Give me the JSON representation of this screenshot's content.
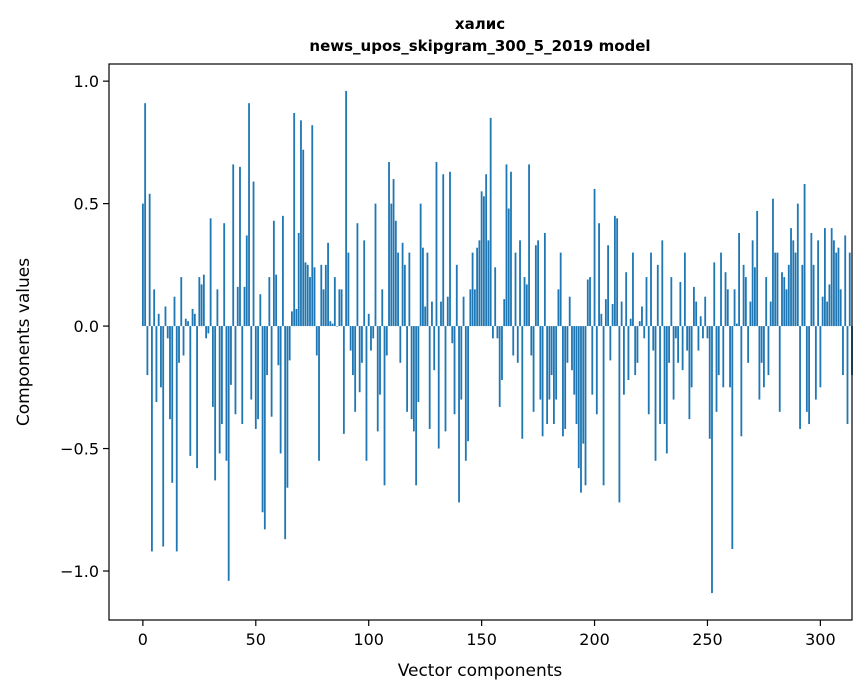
{
  "chart_data": {
    "type": "bar",
    "title": "халис",
    "subtitle": "news_upos_skipgram_300_5_2019 model",
    "xlabel": "Vector components",
    "ylabel": "Components values",
    "xlim": [
      -15,
      314
    ],
    "ylim": [
      -1.2,
      1.07
    ],
    "xticks": [
      0,
      50,
      100,
      150,
      200,
      250,
      300
    ],
    "xtick_labels": [
      "0",
      "50",
      "100",
      "150",
      "200",
      "250",
      "300"
    ],
    "yticks": [
      -1.0,
      -0.5,
      0.0,
      0.5,
      1.0
    ],
    "ytick_labels": [
      "−1.0",
      "−0.5",
      "0.0",
      "0.5",
      "1.0"
    ],
    "grid": false,
    "bar_color": "#1f77b4",
    "values": [
      0.5,
      0.91,
      -0.2,
      0.54,
      -0.92,
      0.15,
      -0.31,
      0.05,
      -0.25,
      -0.9,
      0.08,
      -0.05,
      -0.38,
      -0.64,
      0.12,
      -0.92,
      -0.15,
      0.2,
      -0.12,
      0.03,
      0.02,
      -0.53,
      0.07,
      0.05,
      -0.58,
      0.2,
      0.17,
      0.21,
      -0.05,
      -0.03,
      0.44,
      -0.33,
      -0.63,
      0.15,
      -0.52,
      -0.4,
      0.42,
      -0.55,
      -1.04,
      -0.24,
      0.66,
      -0.36,
      0.16,
      0.65,
      -0.4,
      0.16,
      0.37,
      0.91,
      -0.3,
      0.59,
      -0.42,
      -0.38,
      0.13,
      -0.76,
      -0.83,
      -0.2,
      0.2,
      -0.37,
      0.43,
      0.21,
      -0.16,
      -0.52,
      0.45,
      -0.87,
      -0.66,
      -0.14,
      0.06,
      0.87,
      0.07,
      0.38,
      0.84,
      0.72,
      0.26,
      0.25,
      0.2,
      0.82,
      0.24,
      -0.12,
      -0.55,
      0.25,
      0.15,
      0.25,
      0.34,
      0.02,
      0.01,
      0.2,
      0.0,
      0.15,
      0.15,
      -0.44,
      0.96,
      0.3,
      -0.1,
      -0.2,
      -0.35,
      0.42,
      -0.27,
      -0.15,
      0.35,
      -0.55,
      0.05,
      -0.1,
      -0.05,
      0.5,
      -0.43,
      -0.28,
      0.15,
      -0.65,
      -0.12,
      0.67,
      0.5,
      0.6,
      0.43,
      0.3,
      -0.15,
      0.34,
      0.25,
      -0.35,
      0.3,
      -0.38,
      -0.43,
      -0.65,
      -0.31,
      0.5,
      0.32,
      0.08,
      0.3,
      -0.42,
      0.1,
      -0.18,
      0.67,
      -0.5,
      0.1,
      0.62,
      -0.43,
      0.12,
      0.63,
      -0.07,
      -0.36,
      0.25,
      -0.72,
      -0.3,
      0.12,
      -0.55,
      -0.47,
      0.15,
      0.3,
      0.15,
      0.32,
      0.35,
      0.55,
      0.53,
      0.62,
      0.35,
      0.85,
      -0.05,
      0.24,
      -0.05,
      -0.33,
      -0.22,
      0.11,
      0.66,
      0.48,
      0.63,
      -0.12,
      0.3,
      -0.15,
      0.35,
      -0.46,
      0.2,
      0.17,
      0.66,
      -0.12,
      -0.35,
      0.33,
      0.35,
      -0.3,
      -0.45,
      0.38,
      -0.4,
      -0.3,
      -0.2,
      -0.4,
      -0.3,
      0.15,
      0.3,
      -0.45,
      -0.42,
      -0.15,
      0.12,
      -0.18,
      -0.28,
      -0.4,
      -0.58,
      -0.68,
      -0.48,
      -0.65,
      0.19,
      0.2,
      -0.28,
      0.56,
      -0.36,
      0.42,
      0.05,
      -0.65,
      0.11,
      0.33,
      -0.14,
      0.09,
      0.45,
      0.44,
      -0.72,
      0.1,
      -0.28,
      0.22,
      -0.22,
      0.03,
      0.3,
      -0.2,
      -0.15,
      0.02,
      0.08,
      -0.05,
      0.2,
      -0.36,
      0.3,
      -0.1,
      -0.55,
      0.25,
      -0.4,
      0.35,
      -0.4,
      -0.52,
      -0.15,
      0.2,
      -0.3,
      -0.05,
      -0.15,
      0.18,
      -0.18,
      0.3,
      -0.1,
      -0.38,
      -0.25,
      0.16,
      0.1,
      -0.1,
      0.04,
      -0.05,
      0.12,
      -0.05,
      -0.46,
      -1.09,
      0.26,
      -0.35,
      -0.2,
      0.3,
      -0.25,
      0.22,
      0.15,
      -0.25,
      -0.91,
      0.15,
      0.01,
      0.38,
      -0.45,
      0.25,
      0.2,
      -0.15,
      0.1,
      0.35,
      0.24,
      0.47,
      -0.3,
      -0.15,
      -0.25,
      0.2,
      -0.2,
      0.1,
      0.52,
      0.3,
      0.3,
      -0.35,
      0.22,
      0.2,
      0.15,
      0.25,
      0.4,
      0.35,
      0.3,
      0.5,
      -0.42,
      0.25,
      0.58,
      -0.35,
      -0.4,
      0.38,
      0.25,
      -0.3,
      0.35,
      -0.25,
      0.12,
      0.4,
      0.1,
      0.17,
      0.4,
      0.35,
      0.3,
      0.32,
      0.15,
      -0.2,
      0.37,
      -0.4,
      0.3,
      -0.2
    ]
  }
}
